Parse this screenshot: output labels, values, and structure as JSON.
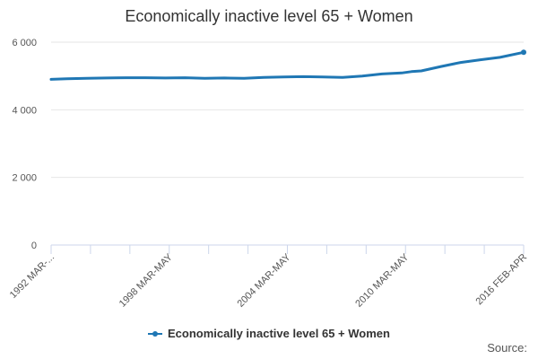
{
  "chart_data": {
    "type": "line",
    "title": "Economically inactive level 65 + Women",
    "xlabel": "",
    "ylabel": "",
    "ylim": [
      0,
      6000
    ],
    "yticks": [
      0,
      2000,
      4000,
      6000
    ],
    "ytick_labels": [
      "0",
      "2 000",
      "4 000",
      "6 000"
    ],
    "x_tick_labels": [
      "1992 MAR-...",
      "1998 MAR-MAY",
      "2004 MAR-MAY",
      "2010 MAR-MAY",
      "2016 FEB-APR"
    ],
    "x_range": [
      1992.2,
      2016.2
    ],
    "grid": true,
    "legend_position": "bottom",
    "series": [
      {
        "name": "Economically inactive level 65 + Women",
        "color": "#1f77b4",
        "x": [
          1992.2,
          1993,
          1994,
          1995,
          1996,
          1997,
          1998,
          1999,
          2000,
          2001,
          2002,
          2003,
          2004,
          2005,
          2006,
          2007,
          2008,
          2009,
          2010,
          2010.5,
          2011,
          2012,
          2013,
          2014,
          2015,
          2016.2
        ],
        "values": [
          4900,
          4920,
          4930,
          4940,
          4950,
          4950,
          4940,
          4950,
          4930,
          4940,
          4930,
          4960,
          4970,
          4980,
          4970,
          4960,
          5000,
          5060,
          5090,
          5130,
          5150,
          5280,
          5400,
          5480,
          5550,
          5700
        ]
      }
    ]
  },
  "legend": {
    "label": "Economically inactive level 65 + Women"
  },
  "source_label": "Source:"
}
